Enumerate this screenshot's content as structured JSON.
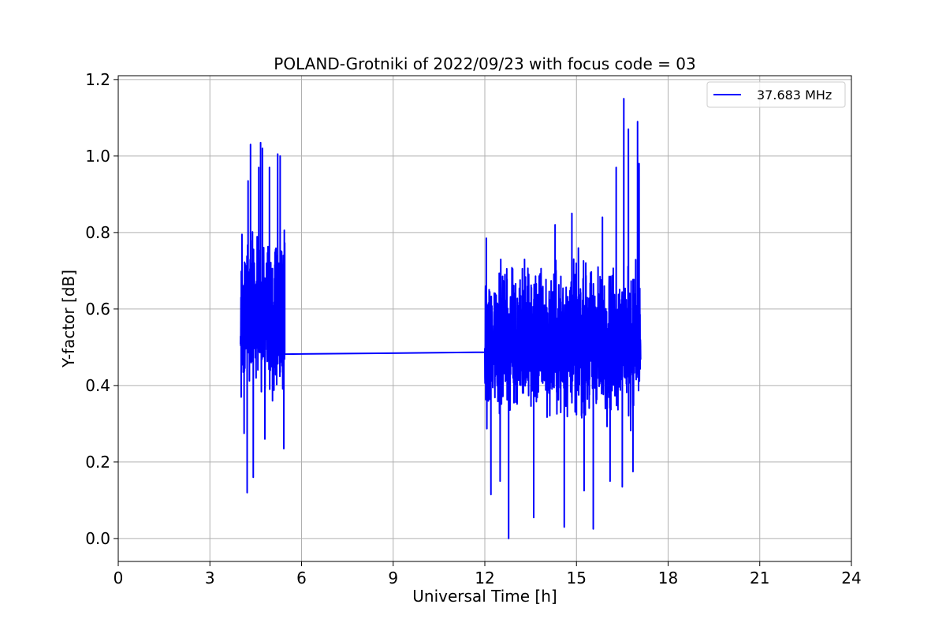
{
  "chart_data": {
    "type": "line",
    "title": "POLAND-Grotniki of 2022/09/23 with focus code = 03",
    "xlabel": "Universal Time [h]",
    "ylabel": "Y-factor [dB]",
    "xlim": [
      0,
      24
    ],
    "ylim": [
      -0.06,
      1.21
    ],
    "xticks": [
      0,
      3,
      6,
      9,
      12,
      15,
      18,
      21,
      24
    ],
    "yticks": [
      0.0,
      0.2,
      0.4,
      0.6,
      0.8,
      1.0,
      1.2
    ],
    "xtick_labels": [
      "0",
      "3",
      "6",
      "9",
      "12",
      "15",
      "18",
      "21",
      "24"
    ],
    "ytick_labels": [
      "0.0",
      "0.2",
      "0.4",
      "0.6",
      "0.8",
      "1.0",
      "1.2"
    ],
    "grid": true,
    "legend_position": "top-right",
    "colors": {
      "series": "#0000ff",
      "grid": "#b0b0b0"
    },
    "series": [
      {
        "name": "37.683 MHz",
        "color": "#0000ff",
        "segments": [
          {
            "x_range": [
              4.0,
              5.45
            ],
            "n": 420,
            "y_center": 0.58,
            "y_spread": 0.2,
            "y_min": 0.12,
            "y_max": 1.035,
            "peaks": [
              {
                "x": 4.05,
                "y": 0.795
              },
              {
                "x": 4.12,
                "y": 0.275
              },
              {
                "x": 4.22,
                "y": 0.12
              },
              {
                "x": 4.25,
                "y": 0.935
              },
              {
                "x": 4.33,
                "y": 1.03
              },
              {
                "x": 4.42,
                "y": 0.16
              },
              {
                "x": 4.6,
                "y": 0.97
              },
              {
                "x": 4.66,
                "y": 1.035
              },
              {
                "x": 4.72,
                "y": 1.02
              },
              {
                "x": 4.8,
                "y": 0.26
              },
              {
                "x": 4.95,
                "y": 0.97
              },
              {
                "x": 5.05,
                "y": 0.36
              },
              {
                "x": 5.22,
                "y": 1.005
              },
              {
                "x": 5.3,
                "y": 1.0
              },
              {
                "x": 5.42,
                "y": 0.235
              }
            ]
          },
          {
            "x_range": [
              5.45,
              12.0
            ],
            "line": [
              [
                5.45,
                0.482
              ],
              [
                12.0,
                0.487
              ]
            ]
          },
          {
            "x_range": [
              12.0,
              17.1
            ],
            "n": 1300,
            "y_center": 0.52,
            "y_spread": 0.2,
            "y_min": 0.0,
            "y_max": 1.15,
            "peaks": [
              {
                "x": 12.05,
                "y": 0.785
              },
              {
                "x": 12.2,
                "y": 0.115
              },
              {
                "x": 12.5,
                "y": 0.15
              },
              {
                "x": 12.78,
                "y": 0.0
              },
              {
                "x": 13.3,
                "y": 0.73
              },
              {
                "x": 13.6,
                "y": 0.055
              },
              {
                "x": 14.3,
                "y": 0.82
              },
              {
                "x": 14.6,
                "y": 0.03
              },
              {
                "x": 14.85,
                "y": 0.85
              },
              {
                "x": 15.25,
                "y": 0.125
              },
              {
                "x": 15.55,
                "y": 0.025
              },
              {
                "x": 15.85,
                "y": 0.84
              },
              {
                "x": 16.1,
                "y": 0.15
              },
              {
                "x": 16.3,
                "y": 0.97
              },
              {
                "x": 16.5,
                "y": 0.135
              },
              {
                "x": 16.55,
                "y": 1.15
              },
              {
                "x": 16.7,
                "y": 1.07
              },
              {
                "x": 16.85,
                "y": 0.175
              },
              {
                "x": 17.0,
                "y": 1.09
              },
              {
                "x": 17.05,
                "y": 0.98
              }
            ]
          }
        ]
      }
    ]
  }
}
